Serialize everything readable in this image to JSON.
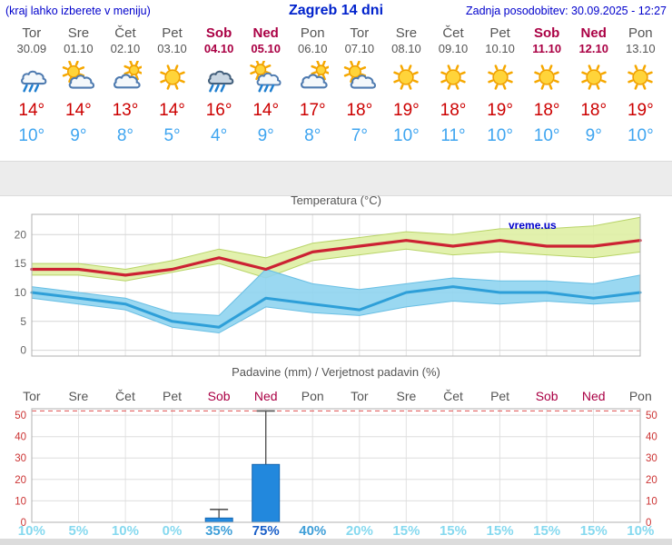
{
  "header": {
    "menu_note": "(kraj lahko izberete v meniju)",
    "title": "Zagreb 14 dni",
    "last_update": "Zadnja posodobitev: 30.09.2025 - 12:27"
  },
  "colors": {
    "link_blue": "#0000cc",
    "weekday_gray": "#555555",
    "weekend_red": "#aa0044",
    "tmax_red": "#cc0000",
    "tmin_blue": "#3fa5f0",
    "line_red": "#cc2233",
    "line_blue": "#2e9fd8",
    "band_green": "#dff0a4",
    "band_blue": "#8fd4ef",
    "bar_blue": "#2288dd",
    "bar_border": "#1565b0",
    "axis_red": "#cc3333",
    "prob_low": "#86d9ef",
    "prob_mid": "#3f9fd8",
    "prob_high": "#1a5fc8"
  },
  "forecast": {
    "days": [
      {
        "name": "Tor",
        "date": "30.09",
        "weekend": false,
        "icon": "light-rain",
        "tmax": "14°",
        "tmin": "10°",
        "prob": "10%",
        "prob_level": "low"
      },
      {
        "name": "Sre",
        "date": "01.10",
        "weekend": false,
        "icon": "partly-cloudy",
        "tmax": "14°",
        "tmin": "9°",
        "prob": "5%",
        "prob_level": "low"
      },
      {
        "name": "Čet",
        "date": "02.10",
        "weekend": false,
        "icon": "mostly-cloudy",
        "tmax": "13°",
        "tmin": "8°",
        "prob": "10%",
        "prob_level": "low"
      },
      {
        "name": "Pet",
        "date": "03.10",
        "weekend": false,
        "icon": "sunny",
        "tmax": "14°",
        "tmin": "5°",
        "prob": "0%",
        "prob_level": "low"
      },
      {
        "name": "Sob",
        "date": "04.10",
        "weekend": true,
        "icon": "rain",
        "tmax": "16°",
        "tmin": "4°",
        "prob": "35%",
        "prob_level": "mid"
      },
      {
        "name": "Ned",
        "date": "05.10",
        "weekend": true,
        "icon": "sun-showers",
        "tmax": "14°",
        "tmin": "9°",
        "prob": "75%",
        "prob_level": "high"
      },
      {
        "name": "Pon",
        "date": "06.10",
        "weekend": false,
        "icon": "mostly-cloudy",
        "tmax": "17°",
        "tmin": "8°",
        "prob": "40%",
        "prob_level": "mid"
      },
      {
        "name": "Tor",
        "date": "07.10",
        "weekend": false,
        "icon": "partly-cloudy",
        "tmax": "18°",
        "tmin": "7°",
        "prob": "20%",
        "prob_level": "low"
      },
      {
        "name": "Sre",
        "date": "08.10",
        "weekend": false,
        "icon": "sunny",
        "tmax": "19°",
        "tmin": "10°",
        "prob": "15%",
        "prob_level": "low"
      },
      {
        "name": "Čet",
        "date": "09.10",
        "weekend": false,
        "icon": "sunny",
        "tmax": "18°",
        "tmin": "11°",
        "prob": "15%",
        "prob_level": "low"
      },
      {
        "name": "Pet",
        "date": "10.10",
        "weekend": false,
        "icon": "sunny",
        "tmax": "19°",
        "tmin": "10°",
        "prob": "15%",
        "prob_level": "low"
      },
      {
        "name": "Sob",
        "date": "11.10",
        "weekend": true,
        "icon": "sunny",
        "tmax": "18°",
        "tmin": "10°",
        "prob": "15%",
        "prob_level": "low"
      },
      {
        "name": "Ned",
        "date": "12.10",
        "weekend": true,
        "icon": "sunny",
        "tmax": "18°",
        "tmin": "9°",
        "prob": "15%",
        "prob_level": "low"
      },
      {
        "name": "Pon",
        "date": "13.10",
        "weekend": false,
        "icon": "sunny",
        "tmax": "19°",
        "tmin": "10°",
        "prob": "10%",
        "prob_level": "low"
      }
    ]
  },
  "chart_data": [
    {
      "type": "area",
      "title": "Temperatura (°C)",
      "watermark": "vreme.us",
      "ylim": [
        -1,
        23.5
      ],
      "yticks": [
        0,
        5,
        10,
        15,
        20
      ],
      "categories": [
        "Tor",
        "Sre",
        "Čet",
        "Pet",
        "Sob",
        "Ned",
        "Pon",
        "Tor",
        "Sre",
        "Čet",
        "Pet",
        "Sob",
        "Ned",
        "Pon"
      ],
      "series": [
        {
          "name": "tmax",
          "values": [
            14,
            14,
            13,
            14,
            16,
            14,
            17,
            18,
            19,
            18,
            19,
            18,
            18,
            19
          ]
        },
        {
          "name": "tmax_band_high",
          "values": [
            15,
            15,
            14,
            15.5,
            17.5,
            16,
            18.5,
            19.5,
            20.5,
            20,
            21,
            21,
            21.5,
            23
          ]
        },
        {
          "name": "tmax_band_low",
          "values": [
            13,
            13,
            12,
            13.5,
            15,
            12.5,
            15.5,
            16.5,
            17.5,
            16.5,
            17,
            16.5,
            16,
            17
          ]
        },
        {
          "name": "tmin",
          "values": [
            10,
            9,
            8,
            5,
            4,
            9,
            8,
            7,
            10,
            11,
            10,
            10,
            9,
            10
          ]
        },
        {
          "name": "tmin_band_high",
          "values": [
            11,
            10,
            9,
            6.5,
            6,
            14,
            11.5,
            10.5,
            11.5,
            12.5,
            12,
            12,
            11.5,
            13
          ]
        },
        {
          "name": "tmin_band_low",
          "values": [
            9,
            8,
            7,
            4,
            3,
            7.5,
            6.5,
            6,
            7.5,
            8.5,
            8,
            8.5,
            8,
            8.5
          ]
        }
      ]
    },
    {
      "type": "bar",
      "title": "Padavine (mm) / Verjetnost padavin (%)",
      "categories": [
        "Tor",
        "Sre",
        "Čet",
        "Pet",
        "Sob",
        "Ned",
        "Pon",
        "Tor",
        "Sre",
        "Čet",
        "Pet",
        "Sob",
        "Ned",
        "Pon"
      ],
      "values_mm": [
        0,
        0,
        0,
        0,
        2,
        27,
        0,
        0,
        0,
        0,
        0,
        0,
        0,
        0
      ],
      "whisker_max_mm": [
        0,
        0,
        0,
        0,
        6,
        52,
        0,
        0,
        0,
        0,
        0,
        0,
        0,
        0
      ],
      "probabilities_pct": [
        10,
        5,
        10,
        0,
        35,
        75,
        40,
        20,
        15,
        15,
        15,
        15,
        15,
        10
      ],
      "ylim": [
        0,
        53
      ],
      "yticks": [
        0,
        10,
        20,
        30,
        40,
        50
      ]
    }
  ]
}
